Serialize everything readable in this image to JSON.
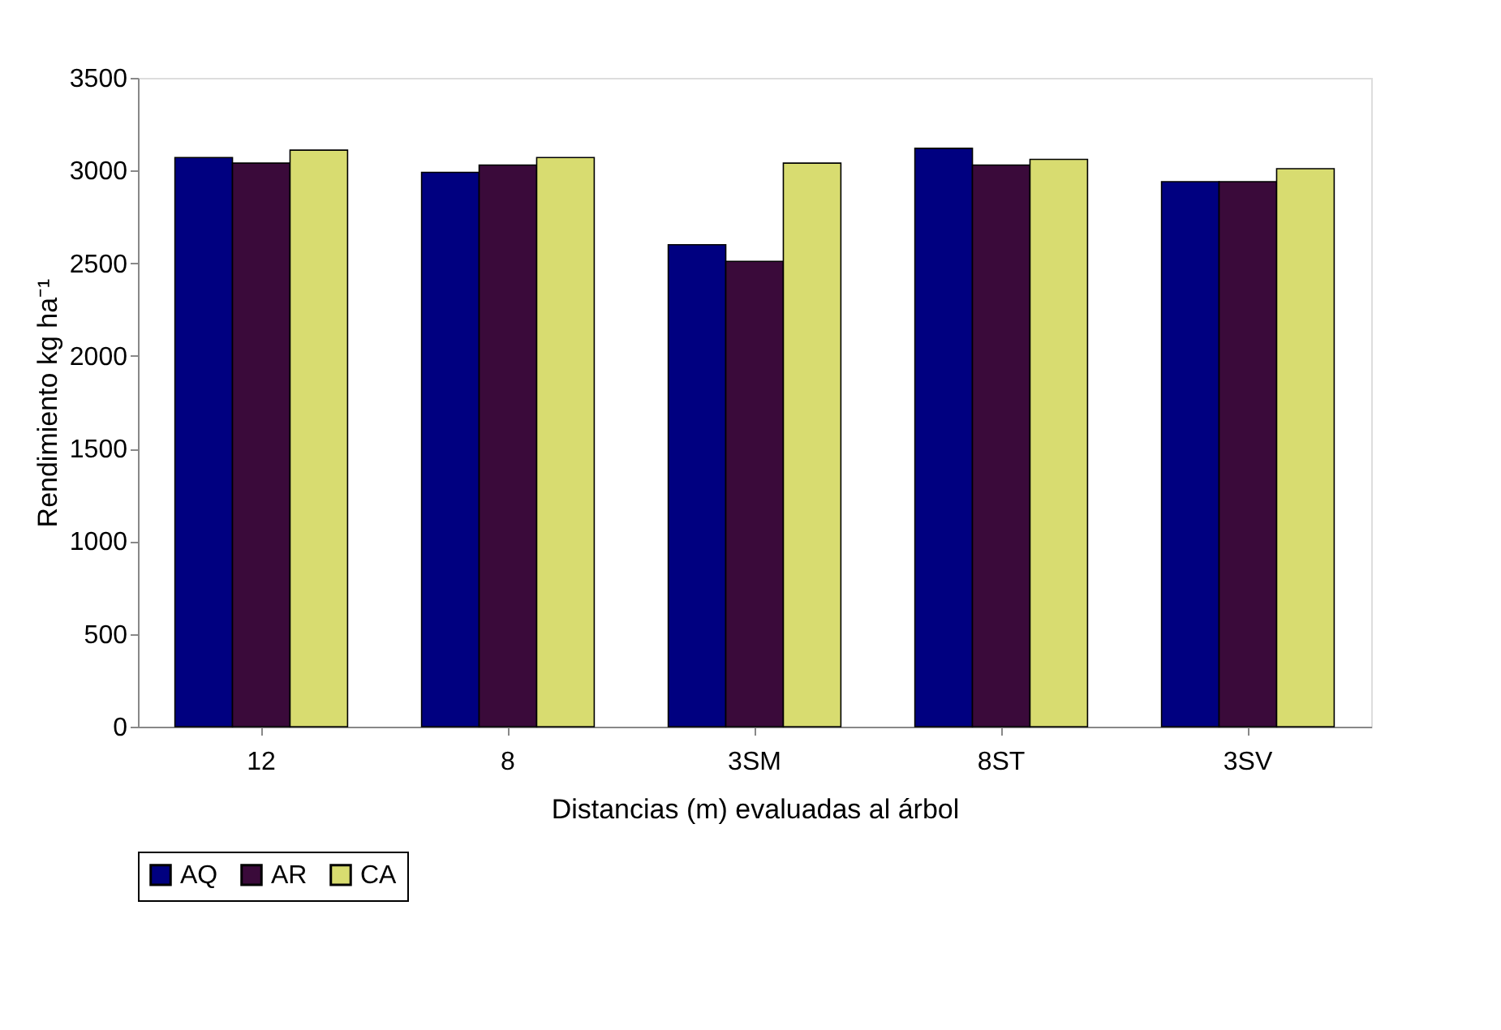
{
  "chart_data": {
    "type": "bar",
    "xlabel": "Distancias (m) evaluadas al árbol",
    "ylabel": "Rendimiento kg ha⁻¹",
    "categories": [
      "12",
      "8",
      "3SM",
      "8ST",
      "3SV"
    ],
    "series": [
      {
        "name": "AQ",
        "color": "#000080",
        "values": [
          3070,
          2990,
          2600,
          3120,
          2940
        ]
      },
      {
        "name": "AR",
        "color": "#3a0a3a",
        "values": [
          3040,
          3030,
          2510,
          3030,
          2940
        ]
      },
      {
        "name": "CA",
        "color": "#d8dc70",
        "values": [
          3110,
          3070,
          3040,
          3060,
          3010
        ]
      }
    ],
    "ylim": [
      0,
      3500
    ],
    "yticks": [
      0,
      500,
      1000,
      1500,
      2000,
      2500,
      3000,
      3500
    ],
    "grid": false,
    "legend": "bottom"
  }
}
